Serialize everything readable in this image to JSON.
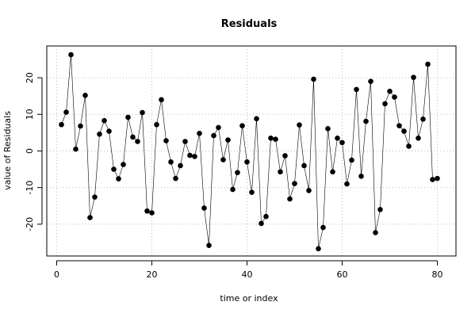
{
  "chart_data": {
    "type": "line",
    "title": "Residuals",
    "xlabel": "time or index",
    "ylabel": "value of Residuals",
    "xlim": [
      0,
      80
    ],
    "ylim": [
      -28,
      28
    ],
    "x_ticks": [
      0,
      20,
      40,
      60,
      80
    ],
    "y_ticks": [
      -20,
      -10,
      0,
      10,
      20
    ],
    "grid": true,
    "series": [
      {
        "x": [
          1,
          2,
          3,
          4,
          5,
          6,
          7,
          8,
          9,
          10,
          11,
          12,
          13,
          14,
          15,
          16,
          17,
          18,
          19,
          20,
          21,
          22,
          23,
          24,
          25,
          26,
          27,
          28,
          29,
          30,
          31,
          32,
          33,
          34,
          35,
          36,
          37,
          38,
          39,
          40,
          41,
          42,
          43,
          44,
          45,
          46,
          47,
          48,
          49,
          50,
          51,
          52,
          53,
          54,
          55,
          56,
          57,
          58,
          59,
          60,
          61,
          62,
          63,
          64,
          65,
          66,
          67,
          68,
          69,
          70,
          71,
          72,
          73,
          74,
          75,
          76,
          77,
          78,
          79,
          80
        ],
        "values": [
          7.2,
          10.6,
          26.3,
          0.5,
          6.8,
          15.2,
          -18.2,
          -12.6,
          4.6,
          8.3,
          5.4,
          -5.0,
          -7.6,
          -3.7,
          9.2,
          3.8,
          2.6,
          10.5,
          -16.4,
          -16.9,
          7.2,
          14.0,
          2.8,
          -3.0,
          -7.5,
          -4.0,
          2.6,
          -1.2,
          -1.5,
          4.8,
          -15.6,
          -25.8,
          4.2,
          6.4,
          -2.4,
          3.0,
          -10.5,
          -5.9,
          6.9,
          -3.0,
          -11.3,
          8.8,
          -19.8,
          -17.9,
          3.5,
          3.2,
          -5.7,
          -1.3,
          -13.1,
          -8.9,
          7.1,
          -4.0,
          -10.8,
          19.6,
          -26.7,
          -20.9,
          6.1,
          -5.7,
          3.5,
          2.3,
          -9.0,
          -2.5,
          16.8,
          -6.9,
          8.1,
          19.0,
          -22.3,
          -16.0,
          12.9,
          16.3,
          14.7,
          6.9,
          5.4,
          1.3,
          20.1,
          3.5,
          8.7,
          23.7,
          -7.8,
          -7.5
        ]
      }
    ]
  }
}
